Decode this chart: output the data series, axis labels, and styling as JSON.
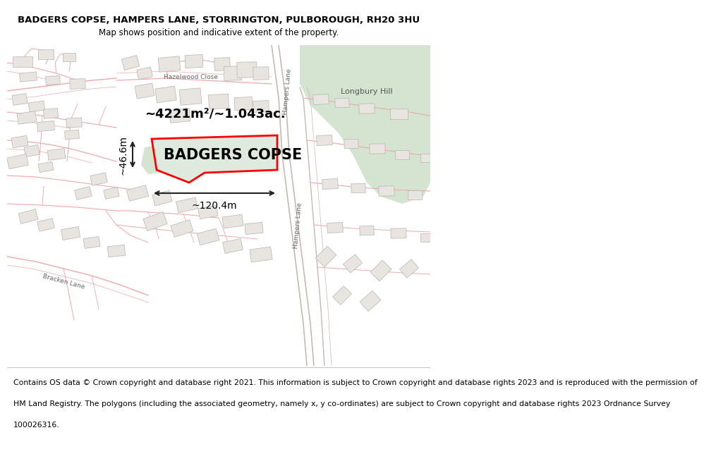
{
  "title_line1": "BADGERS COPSE, HAMPERS LANE, STORRINGTON, PULBOROUGH, RH20 3HU",
  "title_line2": "Map shows position and indicative extent of the property.",
  "property_name": "BADGERS COPSE",
  "area_label": "~4221m²/~1.043ac.",
  "dim_horizontal": "~120.4m",
  "dim_vertical": "~46.6m",
  "footer_lines": [
    "Contains OS data © Crown copyright and database right 2021. This information is subject to Crown copyright and database rights 2023 and is reproduced with the permission of",
    "HM Land Registry. The polygons (including the associated geometry, namely x, y co-ordinates) are subject to Crown copyright and database rights 2023 Ordnance Survey",
    "100026316."
  ],
  "map_bg": "#ffffff",
  "green_color": "#d4e4d0",
  "property_fill": "#deeade",
  "property_edge": "#ff0000",
  "road_pink": "#f0a8a8",
  "road_dark": "#c8b8b0",
  "building_fill": "#e8e4e0",
  "building_edge": "#b8b4b0",
  "title_fontsize": 9.5,
  "subtitle_fontsize": 8.5,
  "property_name_fontsize": 15,
  "area_fontsize": 13,
  "dim_fontsize": 10,
  "footer_fontsize": 7.8,
  "label_fontsize": 6.5
}
